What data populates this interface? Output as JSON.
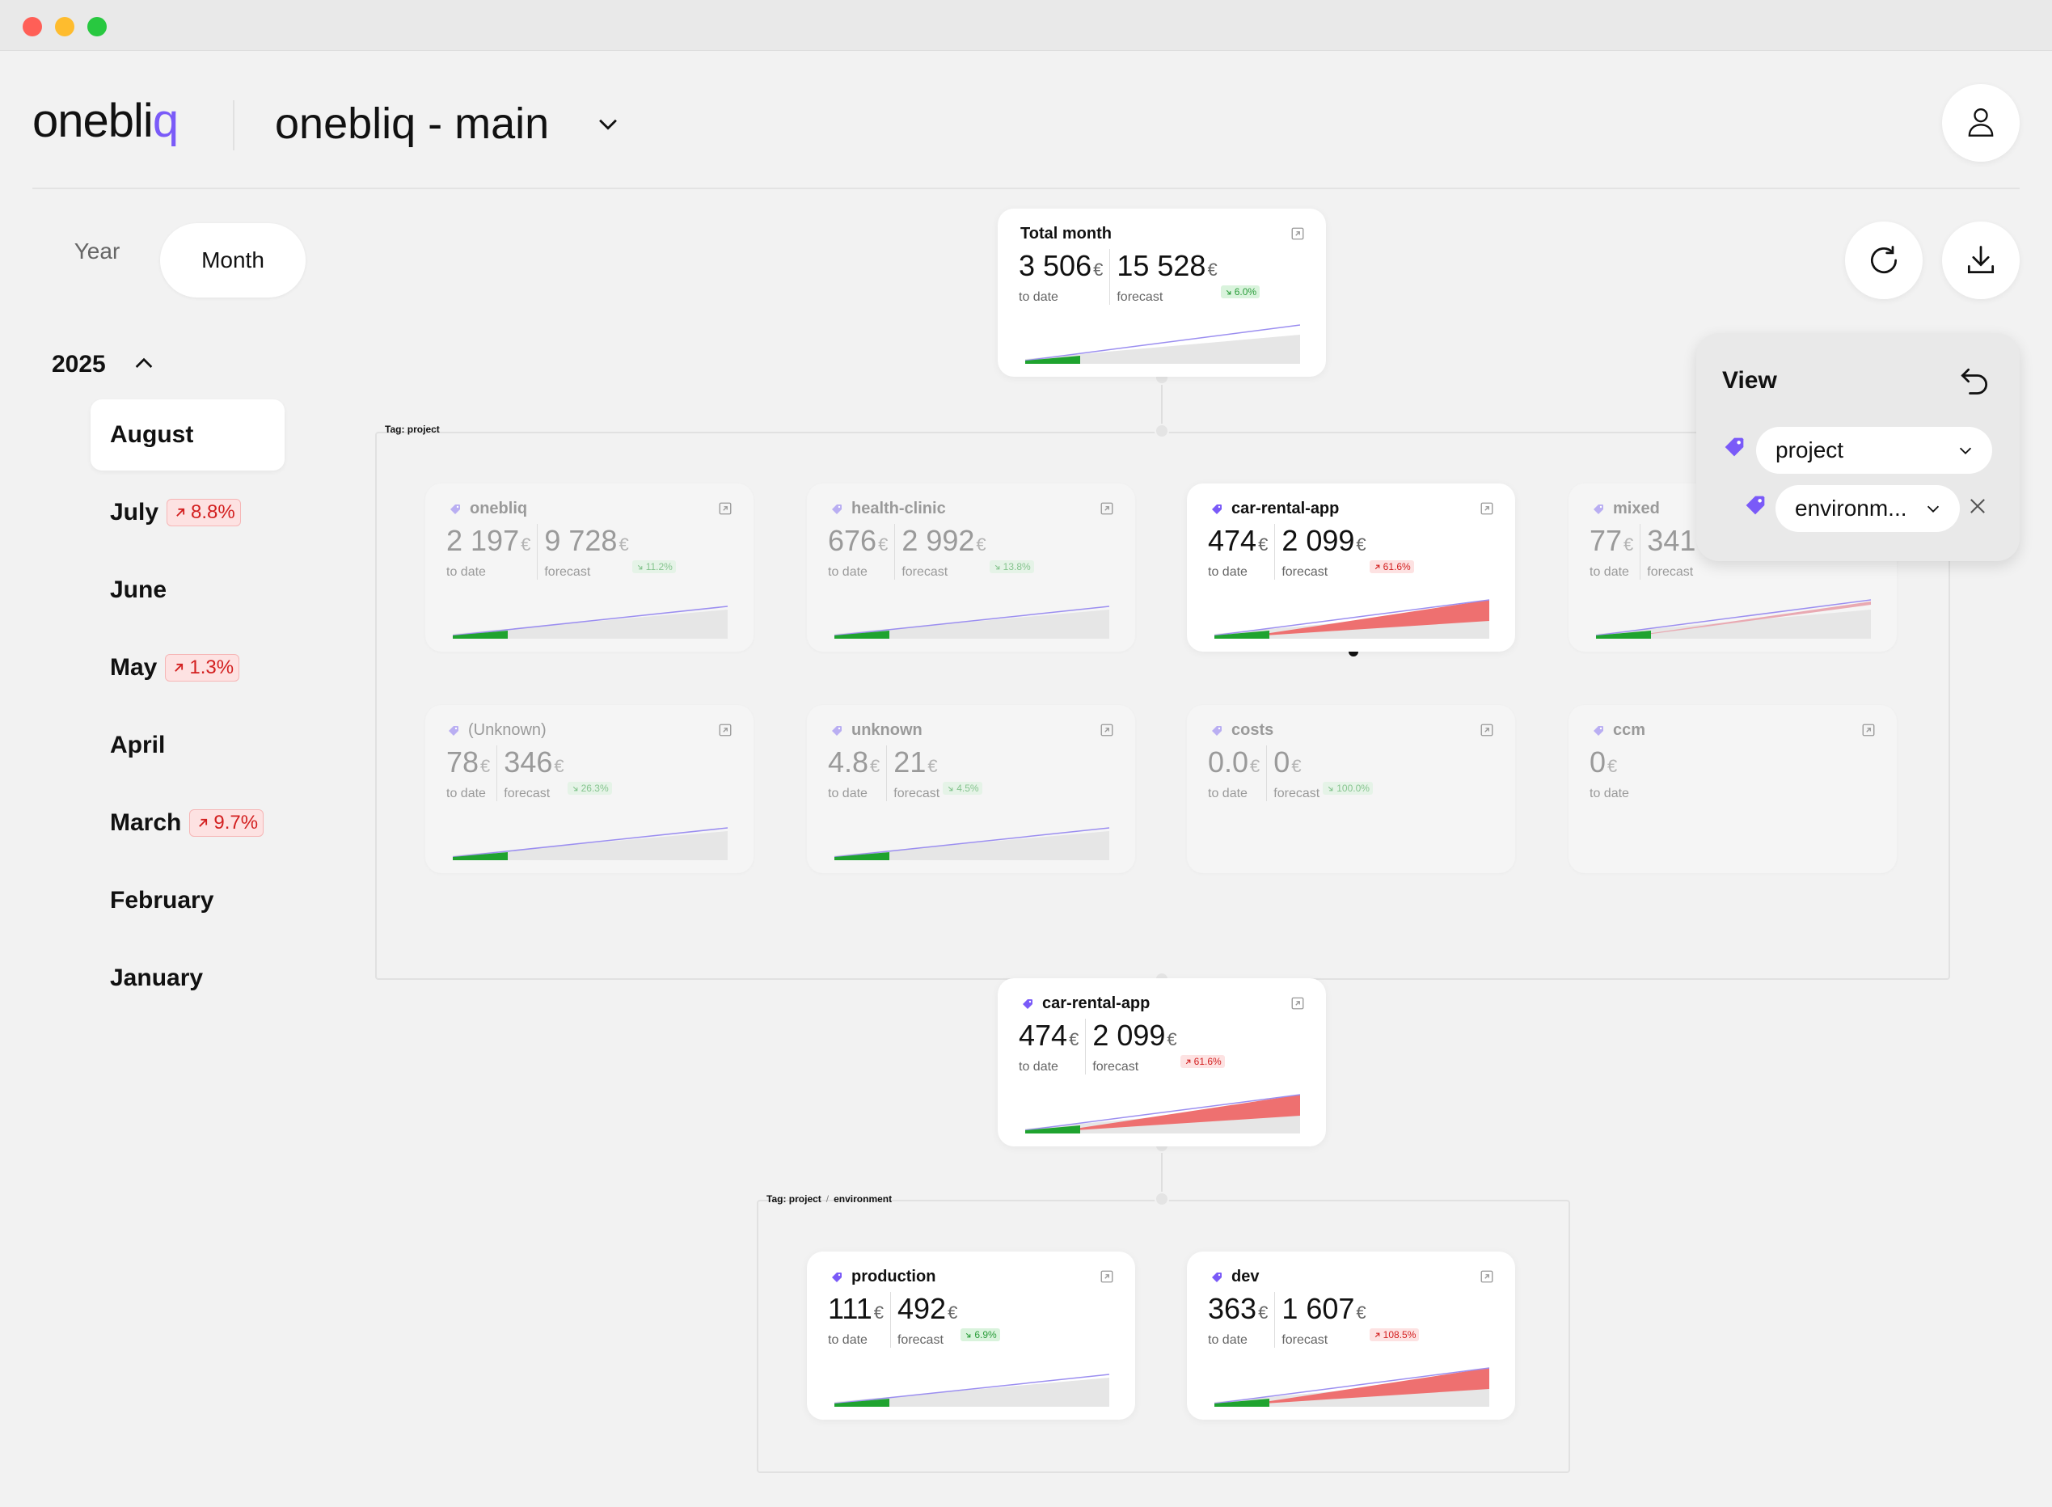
{
  "window": {
    "controls": [
      "close",
      "minimize",
      "maximize"
    ],
    "colors": {
      "close": "#ff5f57",
      "minimize": "#febc2e",
      "maximize": "#28c840"
    }
  },
  "header": {
    "logo_main": "onebli",
    "logo_accent": "q",
    "workspace": "onebliq - main",
    "avatar_icon": "user-icon"
  },
  "period": {
    "year_label": "Year",
    "month_label": "Month",
    "selected": "Month"
  },
  "sidebar": {
    "year": "2025",
    "months": [
      {
        "label": "August",
        "selected": true
      },
      {
        "label": "July",
        "badge": "8.8%"
      },
      {
        "label": "June"
      },
      {
        "label": "May",
        "badge": "1.3%"
      },
      {
        "label": "April"
      },
      {
        "label": "March",
        "badge": "9.7%"
      },
      {
        "label": "February"
      },
      {
        "label": "January"
      }
    ]
  },
  "toolbar": {
    "refresh_icon": "refresh-icon",
    "download_icon": "download-icon"
  },
  "view": {
    "title": "View",
    "level1": "project",
    "level2": "environm..."
  },
  "total": {
    "title": "Total month",
    "to_date": "3 506",
    "forecast": "15 528",
    "change": "6.0%",
    "trend": "down",
    "to_date_label": "to date",
    "forecast_label": "forecast"
  },
  "group1": {
    "label": "Tag: project",
    "cards": [
      {
        "name": "onebliq",
        "to_date": "2 197",
        "forecast": "9 728",
        "change": "11.2%",
        "trend": "down",
        "dim": true,
        "spark": "purple"
      },
      {
        "name": "health-clinic",
        "to_date": "676",
        "forecast": "2 992",
        "change": "13.8%",
        "trend": "down",
        "dim": true,
        "spark": "purple"
      },
      {
        "name": "car-rental-app",
        "to_date": "474",
        "forecast": "2 099",
        "change": "61.6%",
        "trend": "up",
        "dim": false,
        "spark": "red"
      },
      {
        "name": "mixed",
        "to_date": "77",
        "forecast": "341",
        "change": "",
        "trend": "up",
        "dim": true,
        "spark": "redlight"
      },
      {
        "name": "(Unknown)",
        "to_date": "78",
        "forecast": "346",
        "change": "26.3%",
        "trend": "down",
        "dim": true,
        "spark": "purple",
        "plain": true
      },
      {
        "name": "unknown",
        "to_date": "4.8",
        "forecast": "21",
        "change": "4.5%",
        "trend": "down",
        "dim": true,
        "spark": "purple"
      },
      {
        "name": "costs",
        "to_date": "0.0",
        "forecast": "0",
        "change": "100.0%",
        "trend": "down",
        "dim": true,
        "spark": "none"
      },
      {
        "name": "ccm",
        "to_date": "0",
        "forecast": "",
        "change": "",
        "trend": "",
        "dim": true,
        "spark": "none"
      }
    ]
  },
  "selected_card": {
    "name": "car-rental-app",
    "to_date": "474",
    "forecast": "2 099",
    "change": "61.6%",
    "trend": "up"
  },
  "group2": {
    "label_a": "Tag: project",
    "label_sep": "/",
    "label_b": "environment",
    "cards": [
      {
        "name": "production",
        "to_date": "111",
        "forecast": "492",
        "change": "6.9%",
        "trend": "down",
        "spark": "purple"
      },
      {
        "name": "dev",
        "to_date": "363",
        "forecast": "1 607",
        "change": "108.5%",
        "trend": "up",
        "spark": "red"
      }
    ]
  },
  "labels": {
    "to_date": "to date",
    "forecast": "forecast",
    "currency": "€"
  },
  "colors": {
    "accent": "#7a5af8",
    "up": "#d32020",
    "down": "#2a9d3a",
    "spark_green": "#1fa32f",
    "spark_red": "#ee7070"
  }
}
